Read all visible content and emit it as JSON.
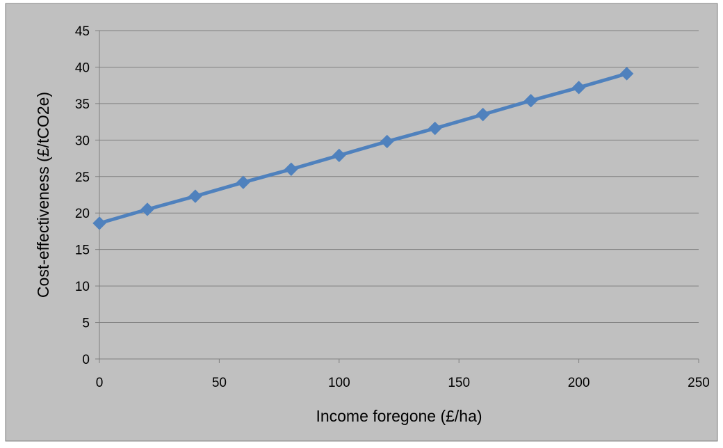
{
  "chart_data": {
    "type": "line",
    "title": "",
    "xlabel": "Income foregone (£/ha)",
    "ylabel": "Cost-effectiveness (£/tCO2e)",
    "xlim": [
      0,
      250
    ],
    "ylim": [
      0,
      45
    ],
    "xticks": [
      0,
      50,
      100,
      150,
      200,
      250
    ],
    "yticks": [
      0,
      5,
      10,
      15,
      20,
      25,
      30,
      35,
      40,
      45
    ],
    "grid": "horizontal",
    "legend": "none",
    "series": [
      {
        "color": "#4f81bd",
        "marker": "diamond",
        "x": [
          0,
          20,
          40,
          60,
          80,
          100,
          120,
          140,
          160,
          180,
          200,
          220
        ],
        "y": [
          18.6,
          20.5,
          22.3,
          24.2,
          26.0,
          27.9,
          29.8,
          31.6,
          33.5,
          35.4,
          37.2,
          39.1
        ]
      }
    ],
    "background_color": "#c0c0c0",
    "gridline_color": "#7f7f7f"
  }
}
